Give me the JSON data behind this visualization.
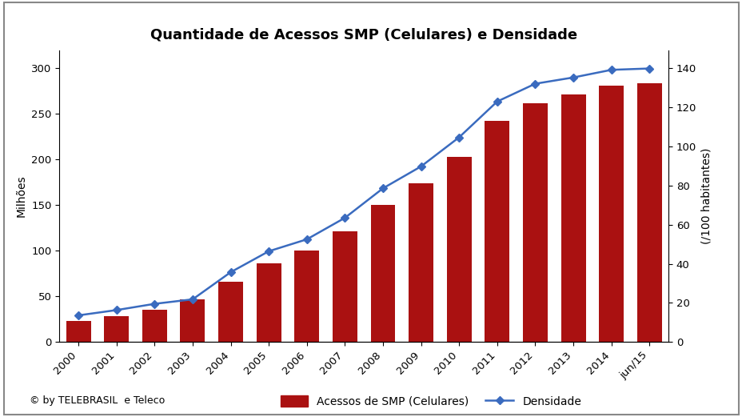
{
  "title": "Quantidade de Acessos SMP (Celulares) e Densidade",
  "categories": [
    "2000",
    "2001",
    "2002",
    "2003",
    "2004",
    "2005",
    "2006",
    "2007",
    "2008",
    "2009",
    "2010",
    "2011",
    "2012",
    "2013",
    "2014",
    "jun/15"
  ],
  "bar_values": [
    23.2,
    28.7,
    34.9,
    46.4,
    65.6,
    86.2,
    99.9,
    120.9,
    150.6,
    174.0,
    202.9,
    242.2,
    261.8,
    271.1,
    280.7,
    283.5
  ],
  "line_values": [
    13.6,
    16.3,
    19.5,
    21.8,
    35.7,
    46.4,
    52.5,
    63.5,
    78.6,
    89.8,
    104.7,
    123.0,
    132.1,
    135.3,
    139.2,
    139.9
  ],
  "bar_color": "#aa1111",
  "line_color": "#3a6bbf",
  "ylabel_left": "Milhões",
  "ylabel_right": "(/100 habitantes)",
  "ylim_left": [
    0,
    320
  ],
  "ylim_right": [
    0,
    149.33
  ],
  "yticks_left": [
    0,
    50,
    100,
    150,
    200,
    250,
    300
  ],
  "yticks_right": [
    0,
    20,
    40,
    60,
    80,
    100,
    120,
    140
  ],
  "copyright_text": "© by TELEBRASIL  e Teleco",
  "legend_bar_label": "Acessos de SMP (Celulares)",
  "legend_line_label": "Densidade",
  "background_color": "#ffffff",
  "title_fontsize": 13,
  "axis_fontsize": 10,
  "tick_fontsize": 9.5,
  "legend_fontsize": 10,
  "copyright_fontsize": 9
}
